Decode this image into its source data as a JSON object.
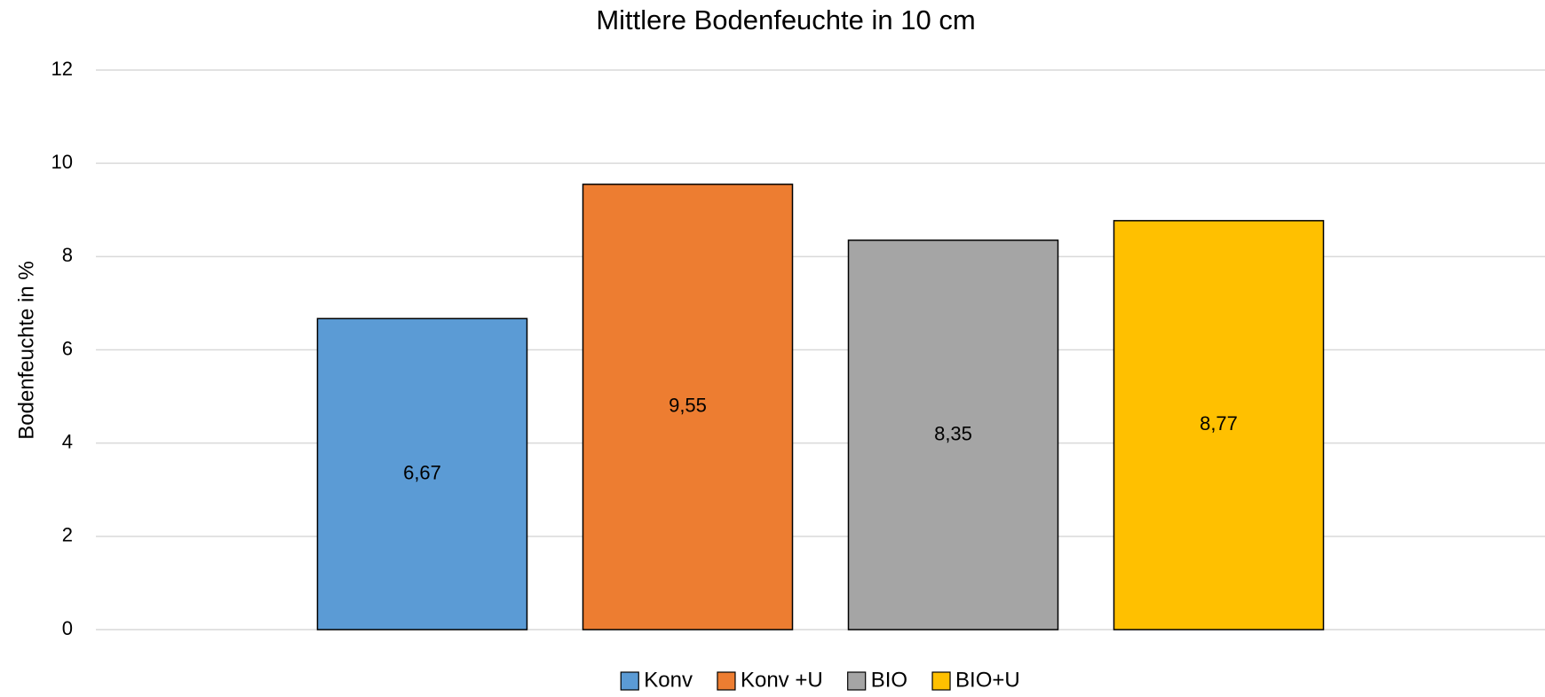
{
  "chart_data": {
    "type": "bar",
    "title": "Mittlere Bodenfeuchte in 10 cm",
    "ylabel": "Bodenfeuchte in %",
    "series": [
      {
        "name": "Konv",
        "color": "#5b9bd5",
        "values": [
          6.67
        ],
        "value_labels": [
          "6,67"
        ]
      },
      {
        "name": "Konv +U",
        "color": "#ed7d31",
        "values": [
          9.55
        ],
        "value_labels": [
          "9,55"
        ]
      },
      {
        "name": "BIO",
        "color": "#a5a5a5",
        "values": [
          8.35
        ],
        "value_labels": [
          "8,35"
        ]
      },
      {
        "name": "BIO+U",
        "color": "#ffc000",
        "values": [
          8.77
        ],
        "value_labels": [
          "8,77"
        ]
      }
    ],
    "ylim": [
      0,
      12
    ],
    "yticks": [
      0,
      2,
      4,
      6,
      8,
      10,
      12
    ],
    "grid": true,
    "legend": "bottom"
  }
}
